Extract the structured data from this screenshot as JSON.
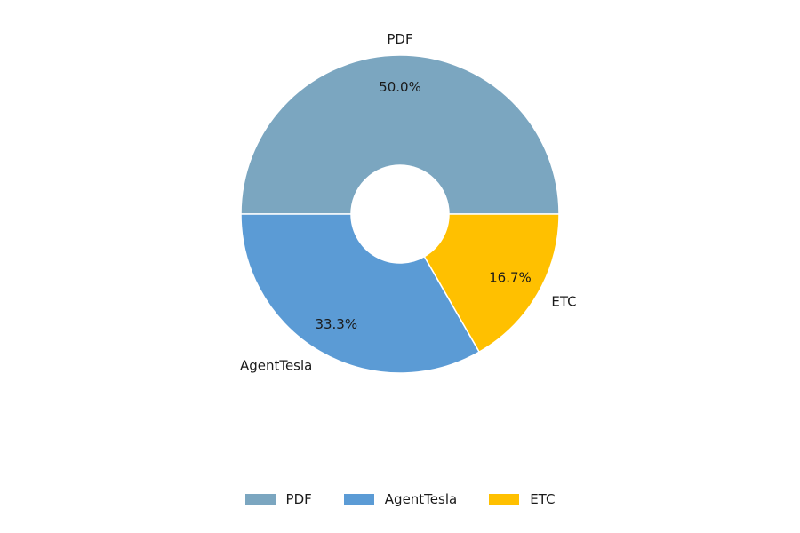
{
  "chart_data": {
    "type": "pie",
    "donut": true,
    "categories": [
      "PDF",
      "AgentTesla",
      "ETC"
    ],
    "values": [
      50.0,
      33.3,
      16.7
    ],
    "percent_labels": [
      "50.0%",
      "33.3%",
      "16.7%"
    ],
    "colors": [
      "#7ba6c0",
      "#5b9bd5",
      "#ffc000"
    ],
    "start_angle_deg": 0,
    "direction": "counterclockwise",
    "title": "",
    "legend": {
      "position": "bottom",
      "entries": [
        "PDF",
        "AgentTesla",
        "ETC"
      ]
    }
  }
}
